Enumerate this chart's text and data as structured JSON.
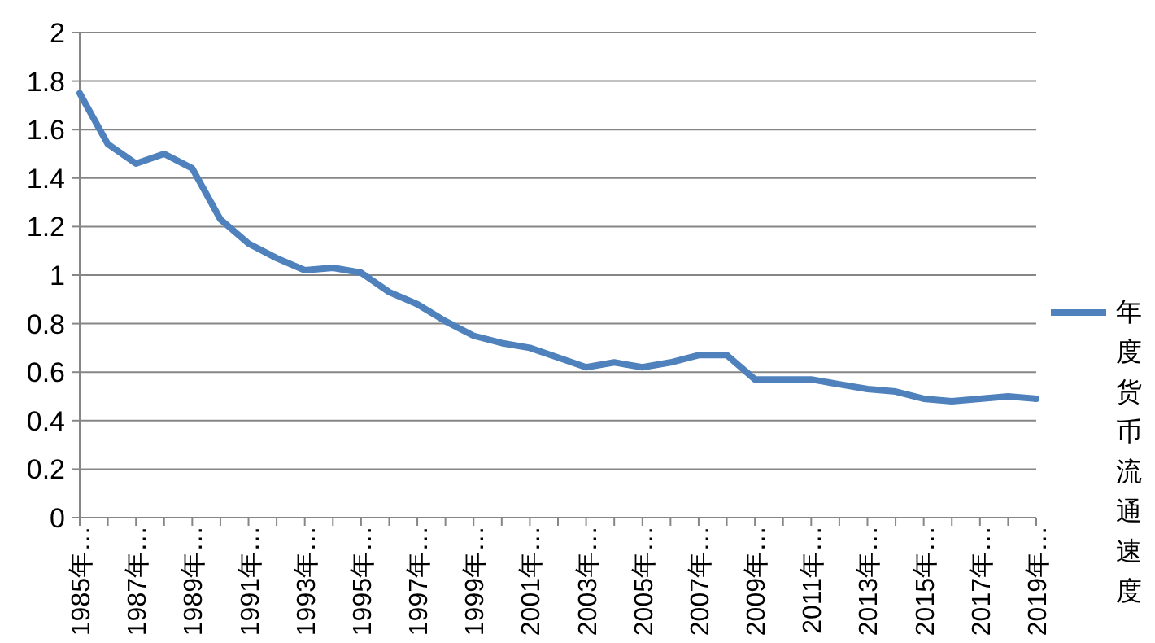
{
  "chart_data": {
    "type": "line",
    "categories": [
      "1985年…",
      null,
      "1987年…",
      null,
      "1989年…",
      null,
      "1991年…",
      null,
      "1993年…",
      null,
      "1995年…",
      null,
      "1997年…",
      null,
      "1999年…",
      null,
      "2001年…",
      null,
      "2003年…",
      null,
      "2005年…",
      null,
      "2007年…",
      null,
      "2009年…",
      null,
      "2011年…",
      null,
      "2013年…",
      null,
      "2015年…",
      null,
      "2017年…",
      null,
      "2019年…"
    ],
    "series": [
      {
        "name": "年度货币流通速度",
        "color": "#4f81bd",
        "values": [
          1.75,
          1.54,
          1.46,
          1.5,
          1.44,
          1.23,
          1.13,
          1.07,
          1.02,
          1.03,
          1.01,
          0.93,
          0.88,
          0.81,
          0.75,
          0.72,
          0.7,
          0.66,
          0.62,
          0.64,
          0.62,
          0.64,
          0.67,
          0.67,
          0.57,
          0.57,
          0.57,
          0.55,
          0.53,
          0.52,
          0.49,
          0.48,
          0.49,
          0.5,
          0.49
        ]
      }
    ],
    "ylim": [
      0,
      2
    ],
    "yticks": [
      0,
      0.2,
      0.4,
      0.6,
      0.8,
      1,
      1.2,
      1.4,
      1.6,
      1.8,
      2
    ],
    "grid": "y",
    "legend": "right",
    "marker": "none"
  }
}
